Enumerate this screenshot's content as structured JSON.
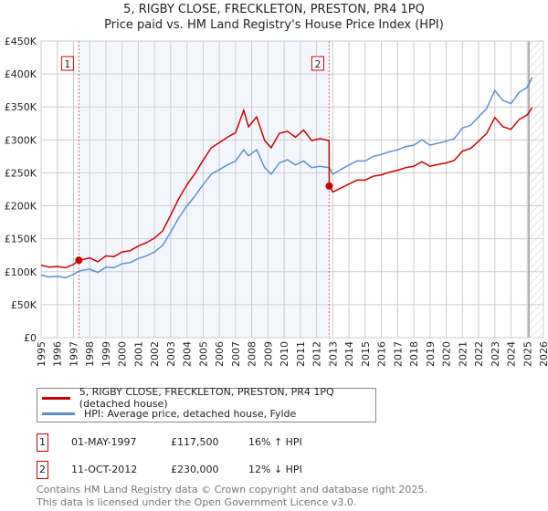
{
  "chart_data": {
    "type": "line",
    "title": "5, RIGBY CLOSE, FRECKLETON, PRESTON, PR4 1PQ",
    "subtitle": "Price paid vs. HM Land Registry's House Price Index (HPI)",
    "xlim": [
      1995,
      2026
    ],
    "ylim": [
      0,
      450000
    ],
    "x_ticks": [
      "1995",
      "1996",
      "1997",
      "1998",
      "1999",
      "2000",
      "2001",
      "2002",
      "2003",
      "2004",
      "2005",
      "2006",
      "2007",
      "2008",
      "2009",
      "2010",
      "2011",
      "2012",
      "2013",
      "2014",
      "2015",
      "2016",
      "2017",
      "2018",
      "2019",
      "2020",
      "2021",
      "2022",
      "2023",
      "2024",
      "2025",
      "2026"
    ],
    "y_ticks": [
      {
        "v": 0,
        "label": "£0"
      },
      {
        "v": 50000,
        "label": "£50K"
      },
      {
        "v": 100000,
        "label": "£100K"
      },
      {
        "v": 150000,
        "label": "£150K"
      },
      {
        "v": 200000,
        "label": "£200K"
      },
      {
        "v": 250000,
        "label": "£250K"
      },
      {
        "v": 300000,
        "label": "£300K"
      },
      {
        "v": 350000,
        "label": "£350K"
      },
      {
        "v": 400000,
        "label": "£400K"
      },
      {
        "v": 450000,
        "label": "£450K"
      }
    ],
    "grid": true,
    "shaded_range": [
      1997.33,
      2012.78
    ],
    "forecast_start": 2025.1,
    "series": [
      {
        "name": "5, RIGBY CLOSE, FRECKLETON, PRESTON, PR4 1PQ (detached house)",
        "color": "#cc0000",
        "x": [
          1995.0,
          1995.5,
          1996.0,
          1996.5,
          1997.0,
          1997.33,
          1997.5,
          1998.0,
          1998.5,
          1999.0,
          1999.5,
          2000.0,
          2000.5,
          2001.0,
          2001.5,
          2002.0,
          2002.5,
          2003.0,
          2003.5,
          2004.0,
          2004.5,
          2005.0,
          2005.5,
          2006.0,
          2006.5,
          2007.0,
          2007.5,
          2007.8,
          2008.3,
          2008.8,
          2009.2,
          2009.7,
          2010.2,
          2010.7,
          2011.2,
          2011.7,
          2012.2,
          2012.77,
          2012.78,
          2013.0,
          2013.5,
          2014.0,
          2014.5,
          2015.0,
          2015.5,
          2016.0,
          2016.5,
          2017.0,
          2017.5,
          2018.0,
          2018.5,
          2019.0,
          2019.5,
          2020.0,
          2020.5,
          2021.0,
          2021.5,
          2022.0,
          2022.5,
          2023.0,
          2023.5,
          2024.0,
          2024.5,
          2025.0,
          2025.3
        ],
        "y": [
          110,
          107,
          108,
          106,
          111,
          117.5,
          118,
          121,
          115,
          124,
          123,
          130,
          132,
          139,
          144,
          151,
          162,
          186,
          211,
          232,
          249,
          269,
          288,
          296,
          304,
          311,
          345,
          320,
          335,
          299,
          288,
          310,
          313,
          304,
          315,
          299,
          302,
          299,
          230,
          221,
          227,
          233,
          239,
          239,
          245,
          247,
          251,
          254,
          258,
          260,
          267,
          260,
          263,
          265,
          269,
          283,
          287,
          298,
          310,
          334,
          320,
          316,
          331,
          338,
          349
        ]
      },
      {
        "name": "HPI: Average price, detached house, Fylde",
        "color": "#5b8fd0",
        "x": [
          1995.0,
          1995.5,
          1996.0,
          1996.5,
          1997.0,
          1997.33,
          1997.5,
          1998.0,
          1998.5,
          1999.0,
          1999.5,
          2000.0,
          2000.5,
          2001.0,
          2001.5,
          2002.0,
          2002.5,
          2003.0,
          2003.5,
          2004.0,
          2004.5,
          2005.0,
          2005.5,
          2006.0,
          2006.5,
          2007.0,
          2007.5,
          2007.8,
          2008.3,
          2008.8,
          2009.2,
          2009.7,
          2010.2,
          2010.7,
          2011.2,
          2011.7,
          2012.2,
          2012.78,
          2013.0,
          2013.5,
          2014.0,
          2014.5,
          2015.0,
          2015.5,
          2016.0,
          2016.5,
          2017.0,
          2017.5,
          2018.0,
          2018.5,
          2019.0,
          2019.5,
          2020.0,
          2020.5,
          2021.0,
          2021.5,
          2022.0,
          2022.5,
          2023.0,
          2023.5,
          2024.0,
          2024.5,
          2025.0,
          2025.3
        ],
        "y": [
          95,
          92,
          93,
          91,
          96,
          101,
          102,
          104,
          99,
          107,
          106,
          112,
          114,
          120,
          124,
          130,
          140,
          160,
          182,
          200,
          215,
          232,
          248,
          255,
          262,
          268,
          285,
          276,
          285,
          258,
          248,
          265,
          270,
          262,
          268,
          258,
          260,
          258,
          248,
          255,
          262,
          268,
          268,
          275,
          278,
          282,
          285,
          290,
          292,
          300,
          292,
          295,
          298,
          302,
          318,
          322,
          335,
          348,
          375,
          360,
          355,
          372,
          380,
          395
        ]
      }
    ],
    "annotations": [
      {
        "label": "1",
        "x": 1997.33,
        "y": 117.5
      },
      {
        "label": "2",
        "x": 2012.78,
        "y": 230
      }
    ]
  },
  "legend": {
    "red": "5, RIGBY CLOSE, FRECKLETON, PRESTON, PR4 1PQ (detached house)",
    "blue": "HPI: Average price, detached house, Fylde"
  },
  "sales": [
    {
      "num": "1",
      "date": "01-MAY-1997",
      "price": "£117,500",
      "hpi": "16% ↑ HPI"
    },
    {
      "num": "2",
      "date": "11-OCT-2012",
      "price": "£230,000",
      "hpi": "12% ↓ HPI"
    }
  ],
  "footer": [
    "Contains HM Land Registry data © Crown copyright and database right 2025.",
    "This data is licensed under the Open Government Licence v3.0."
  ]
}
